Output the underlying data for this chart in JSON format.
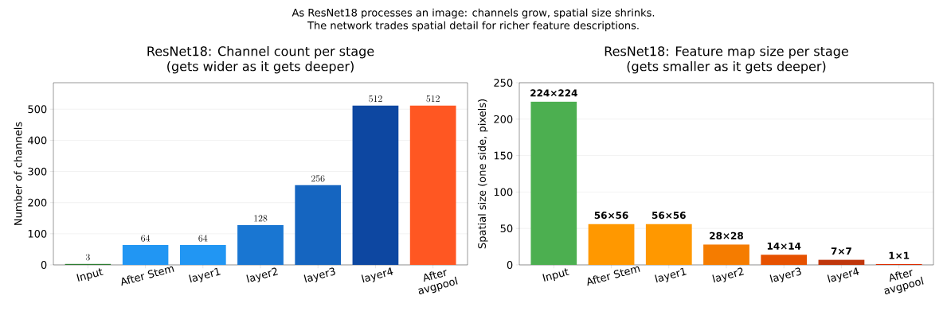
{
  "chart_data": [
    {
      "type": "bar",
      "title": "ResNet18: Channel count per stage",
      "subtitle": "(gets wider as it gets deeper)",
      "ylabel": "Number of channels",
      "annotations": [
        "As ResNet18 processes an image: channels grow, spatial size shrinks.",
        "The network trades spatial detail for richer feature descriptions."
      ],
      "categories": [
        "Input",
        "After Stem",
        "layer1",
        "layer2",
        "layer3",
        "layer4",
        "After avgpool"
      ],
      "values": [
        3,
        64,
        64,
        128,
        256,
        512,
        512
      ],
      "colors": [
        "#2e7d32",
        "#2196f3",
        "#2196f3",
        "#1976d2",
        "#1565c0",
        "#0d47a1",
        "#ff5722"
      ],
      "data_labels": true,
      "ylim": [
        0,
        585
      ],
      "yticks": [
        0,
        100,
        200,
        300,
        400,
        500
      ],
      "grid": "y"
    },
    {
      "type": "bar",
      "title": "ResNet18: Feature map size per stage",
      "subtitle": "(gets smaller as it gets deeper)",
      "ylabel": "Spatial size (one side, pixels)",
      "categories": [
        "Input",
        "After Stem",
        "layer1",
        "layer2",
        "layer3",
        "layer4",
        "After avgpool"
      ],
      "values": [
        224,
        56,
        56,
        28,
        14,
        7,
        1
      ],
      "value_labels": [
        "224×224",
        "56×56",
        "56×56",
        "28×28",
        "14×14",
        "7×7",
        "1×1"
      ],
      "colors": [
        "#4caf50",
        "#ff9800",
        "#ff9800",
        "#f57c00",
        "#e65100",
        "#bf360c",
        "#dd2c00"
      ],
      "ylim": [
        0,
        250
      ],
      "yticks": [
        0,
        50,
        100,
        150,
        200,
        250
      ],
      "grid": "y"
    }
  ]
}
